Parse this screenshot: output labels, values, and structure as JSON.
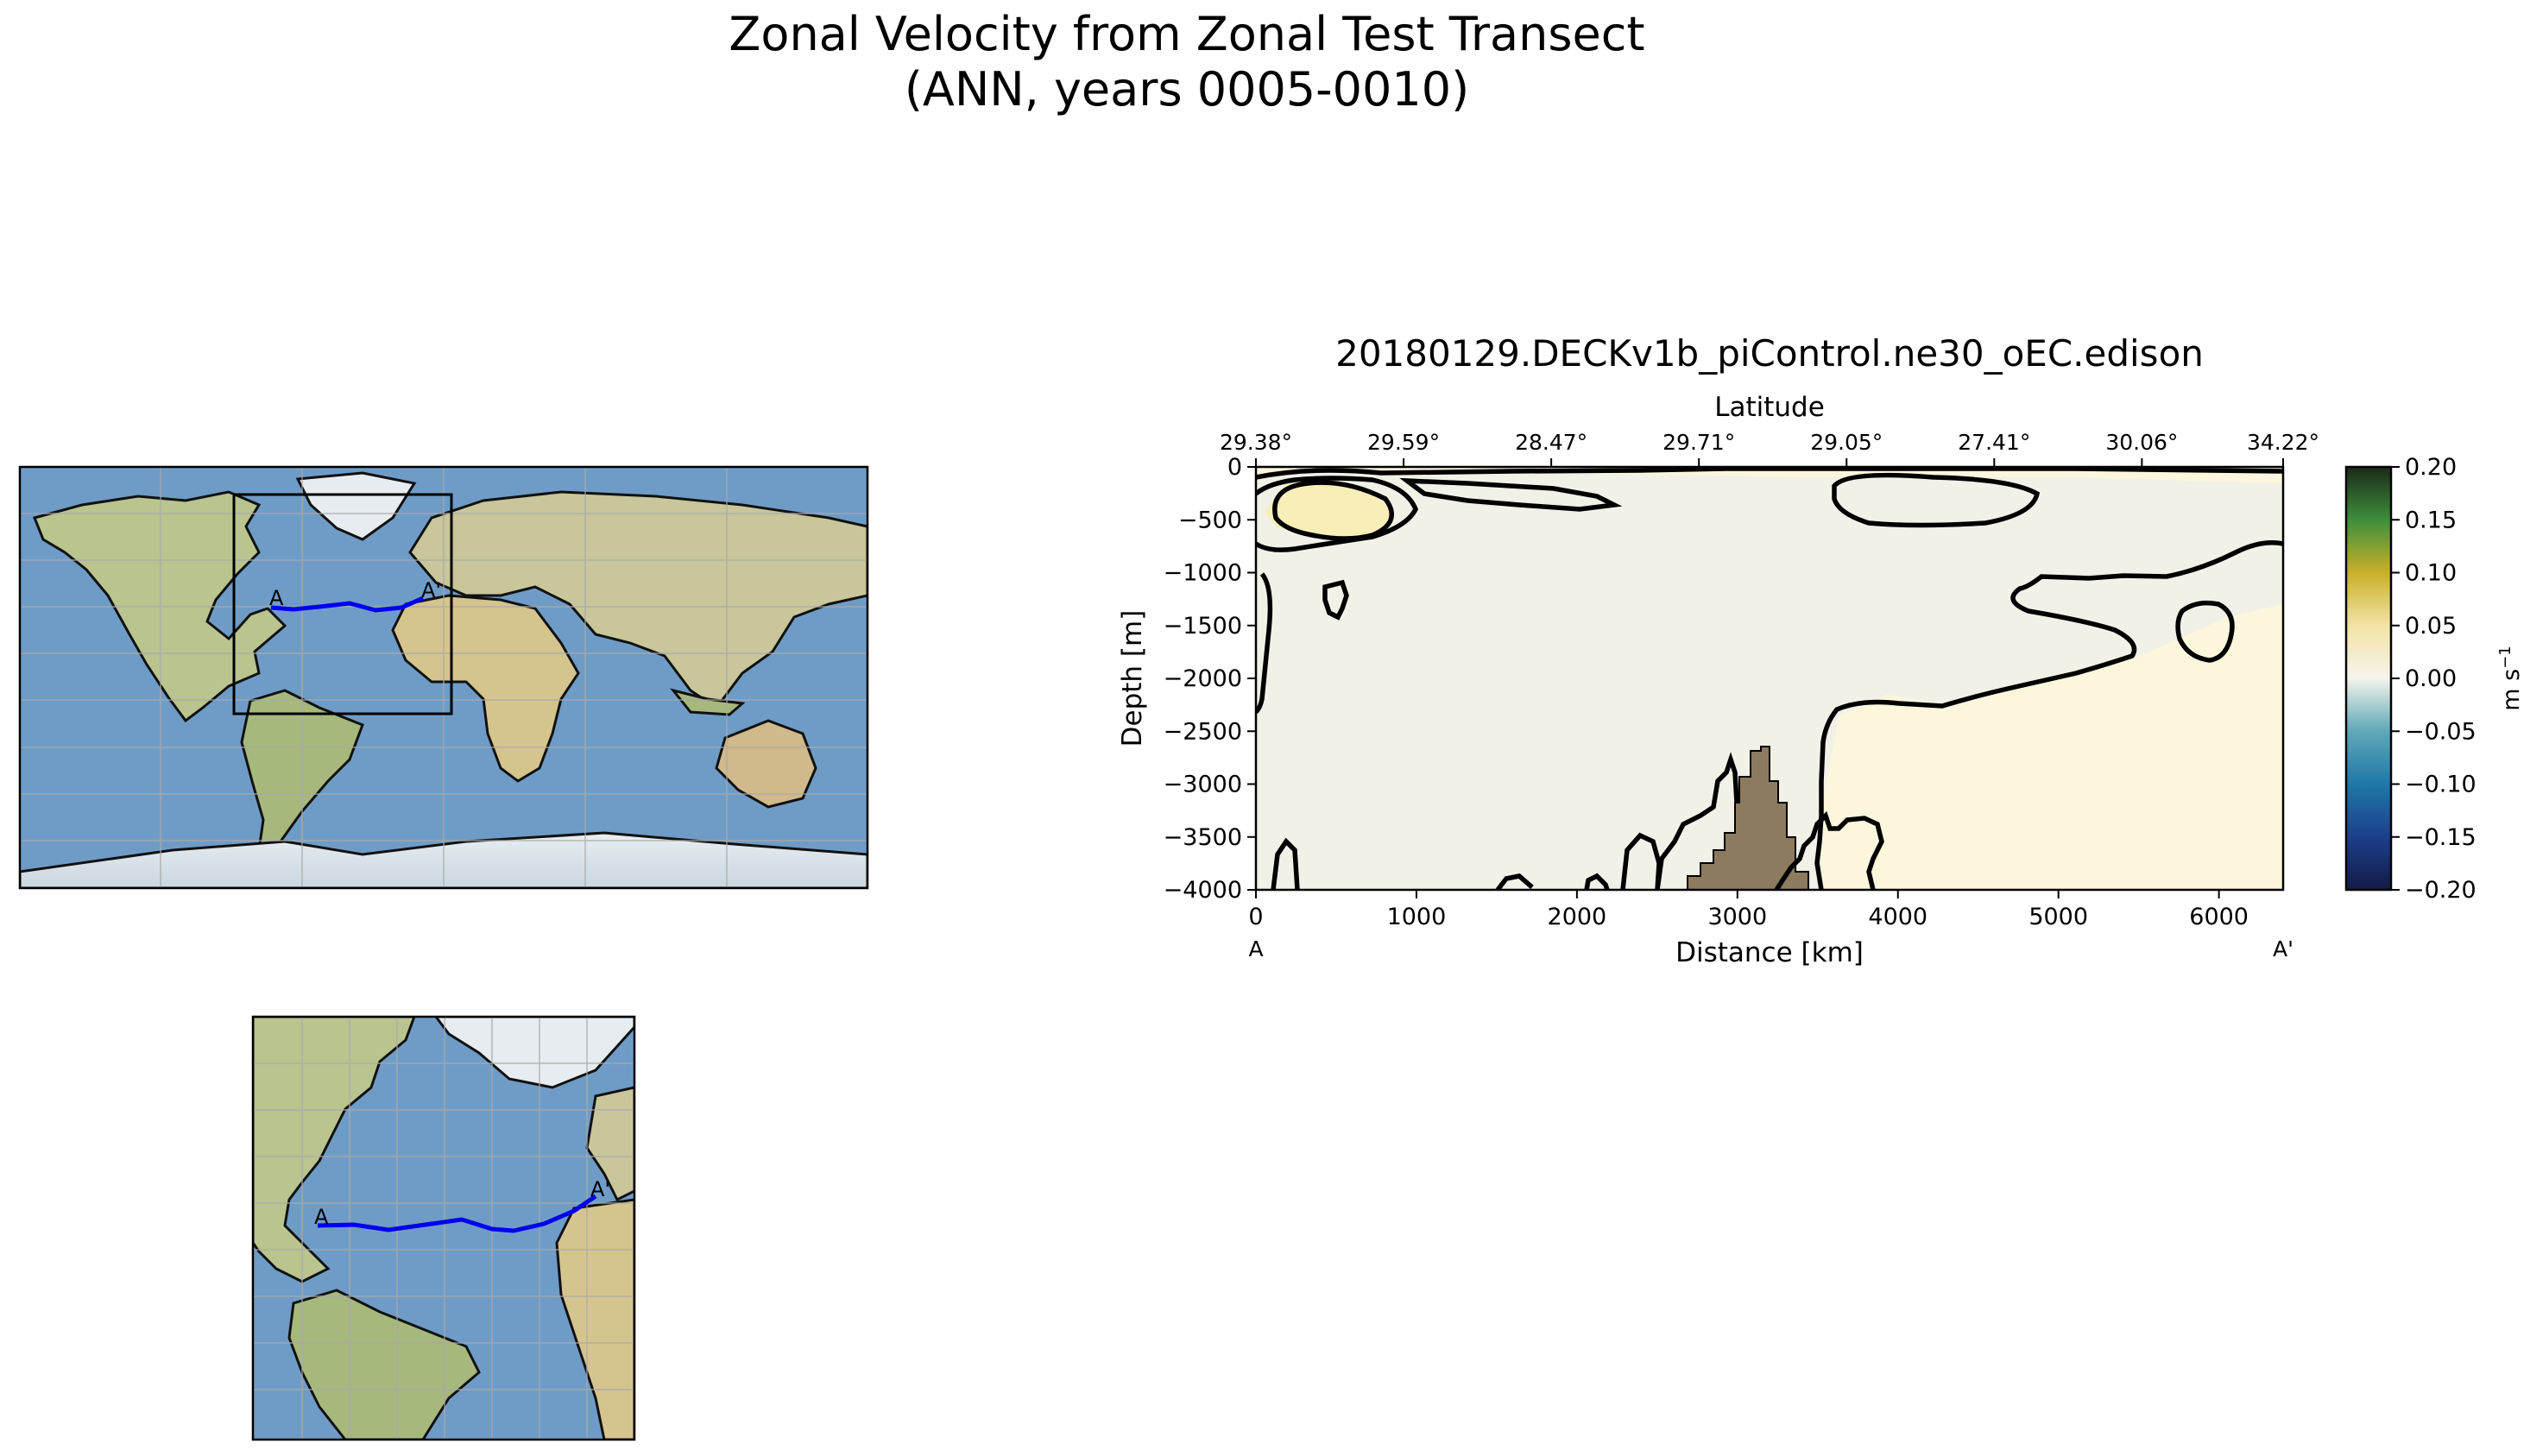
{
  "figure": {
    "title_line1": "Zonal Velocity from Zonal Test Transect",
    "title_line2": "(ANN, years 0005-0010)"
  },
  "maps": {
    "global_label_a": "A",
    "global_label_b": "A'",
    "inset_label_a": "A",
    "inset_label_b": "A'",
    "transect_color": "#0000ee",
    "ocean_color": "#6f9cc7",
    "land_color": "#b9c48e"
  },
  "chart_data": {
    "type": "heatmap",
    "title": "20180129.DECKv1b_piControl.ne30_oEC.edison",
    "xlabel": "Distance [km]",
    "ylabel": "Depth [m]",
    "top_axis_label": "Latitude",
    "xlim": [
      0,
      6400
    ],
    "ylim": [
      -4000,
      0
    ],
    "x_ticks": [
      0,
      1000,
      2000,
      3000,
      4000,
      5000,
      6000
    ],
    "x_tick_labels": [
      "0",
      "1000",
      "2000",
      "3000",
      "4000",
      "5000",
      "6000"
    ],
    "y_ticks": [
      0,
      -500,
      -1000,
      -1500,
      -2000,
      -2500,
      -3000,
      -3500,
      -4000
    ],
    "y_tick_labels": [
      "0",
      "−500",
      "−1000",
      "−1500",
      "−2000",
      "−2500",
      "−3000",
      "−3500",
      "−4000"
    ],
    "top_tick_positions_km": [
      0,
      920,
      1840,
      2760,
      3680,
      4600,
      5520,
      6440
    ],
    "top_tick_labels": [
      "29.38°",
      "29.59°",
      "28.47°",
      "29.71°",
      "29.05°",
      "27.41°",
      "30.06°",
      "34.22°"
    ],
    "endpoint_start_label": "A",
    "endpoint_end_label": "A'",
    "colorbar": {
      "label": "m s",
      "label_exponent": "−1",
      "vmin": -0.2,
      "vmax": 0.2,
      "ticks": [
        0.2,
        0.15,
        0.1,
        0.05,
        0.0,
        -0.05,
        -0.1,
        -0.15,
        -0.2
      ],
      "tick_labels": [
        "0.20",
        "0.15",
        "0.10",
        "0.05",
        "0.00",
        "−0.05",
        "−0.10",
        "−0.15",
        "−0.20"
      ],
      "colors": [
        "#131a45",
        "#1d3f8c",
        "#1f78a8",
        "#5fa8b8",
        "#f4f4ec",
        "#f2e3a6",
        "#c8b02a",
        "#3e8e3b",
        "#1a2a18"
      ]
    },
    "field_colors": {
      "near_zero": "#f1f1e8",
      "weak_positive": "#fbf6dc",
      "positive": "#f8eeb8",
      "topography": "#8c7b5e"
    },
    "contour_level": 0.0
  }
}
